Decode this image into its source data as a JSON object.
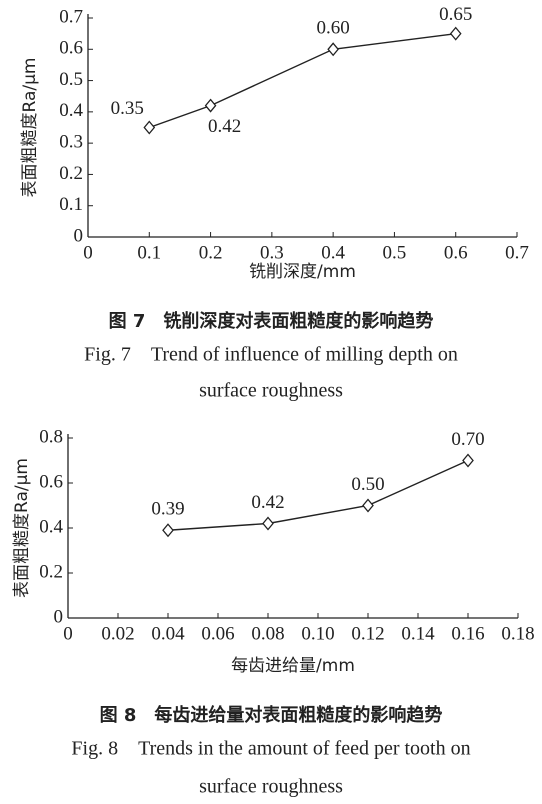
{
  "chart_data": [
    {
      "type": "line",
      "x": [
        0.1,
        0.2,
        0.4,
        0.6
      ],
      "values": [
        0.35,
        0.42,
        0.6,
        0.65
      ],
      "value_labels": [
        "0.35",
        "0.42",
        "0.60",
        "0.65"
      ],
      "xlim": [
        0,
        0.7
      ],
      "xticks": [
        0,
        0.1,
        0.2,
        0.3,
        0.4,
        0.5,
        0.6,
        0.7
      ],
      "ylim": [
        0,
        0.7
      ],
      "yticks": [
        0,
        0.1,
        0.2,
        0.3,
        0.4,
        0.5,
        0.6,
        0.7
      ],
      "x_label": "铣削深度/mm",
      "y_label": "表面粗糙度Ra/μm",
      "color": "#222222",
      "caption_cn": "图 7　铣削深度对表面粗糙度的影响趋势",
      "caption_en": [
        "Fig. 7　Trend of influence of milling depth on",
        "surface roughness"
      ]
    },
    {
      "type": "line",
      "x": [
        0.04,
        0.08,
        0.12,
        0.16
      ],
      "values": [
        0.39,
        0.42,
        0.5,
        0.7
      ],
      "value_labels": [
        "0.39",
        "0.42",
        "0.50",
        "0.70"
      ],
      "xlim": [
        0,
        0.18
      ],
      "xticks": [
        0,
        0.02,
        0.04,
        0.06,
        0.08,
        {
          "value": 0.1,
          "label": "0.10"
        },
        0.12,
        0.14,
        0.16,
        0.18
      ],
      "ylim": [
        0,
        0.8
      ],
      "yticks": [
        0,
        0.2,
        0.4,
        0.6,
        0.8
      ],
      "x_label": "每齿进给量/mm",
      "y_label": "表面粗糙度Ra/μm",
      "color": "#222222",
      "caption_cn": "图 8　每齿进给量对表面粗糙度的影响趋势",
      "caption_en": [
        "Fig. 8　Trends in the amount of feed per tooth on",
        "surface roughness"
      ]
    }
  ]
}
